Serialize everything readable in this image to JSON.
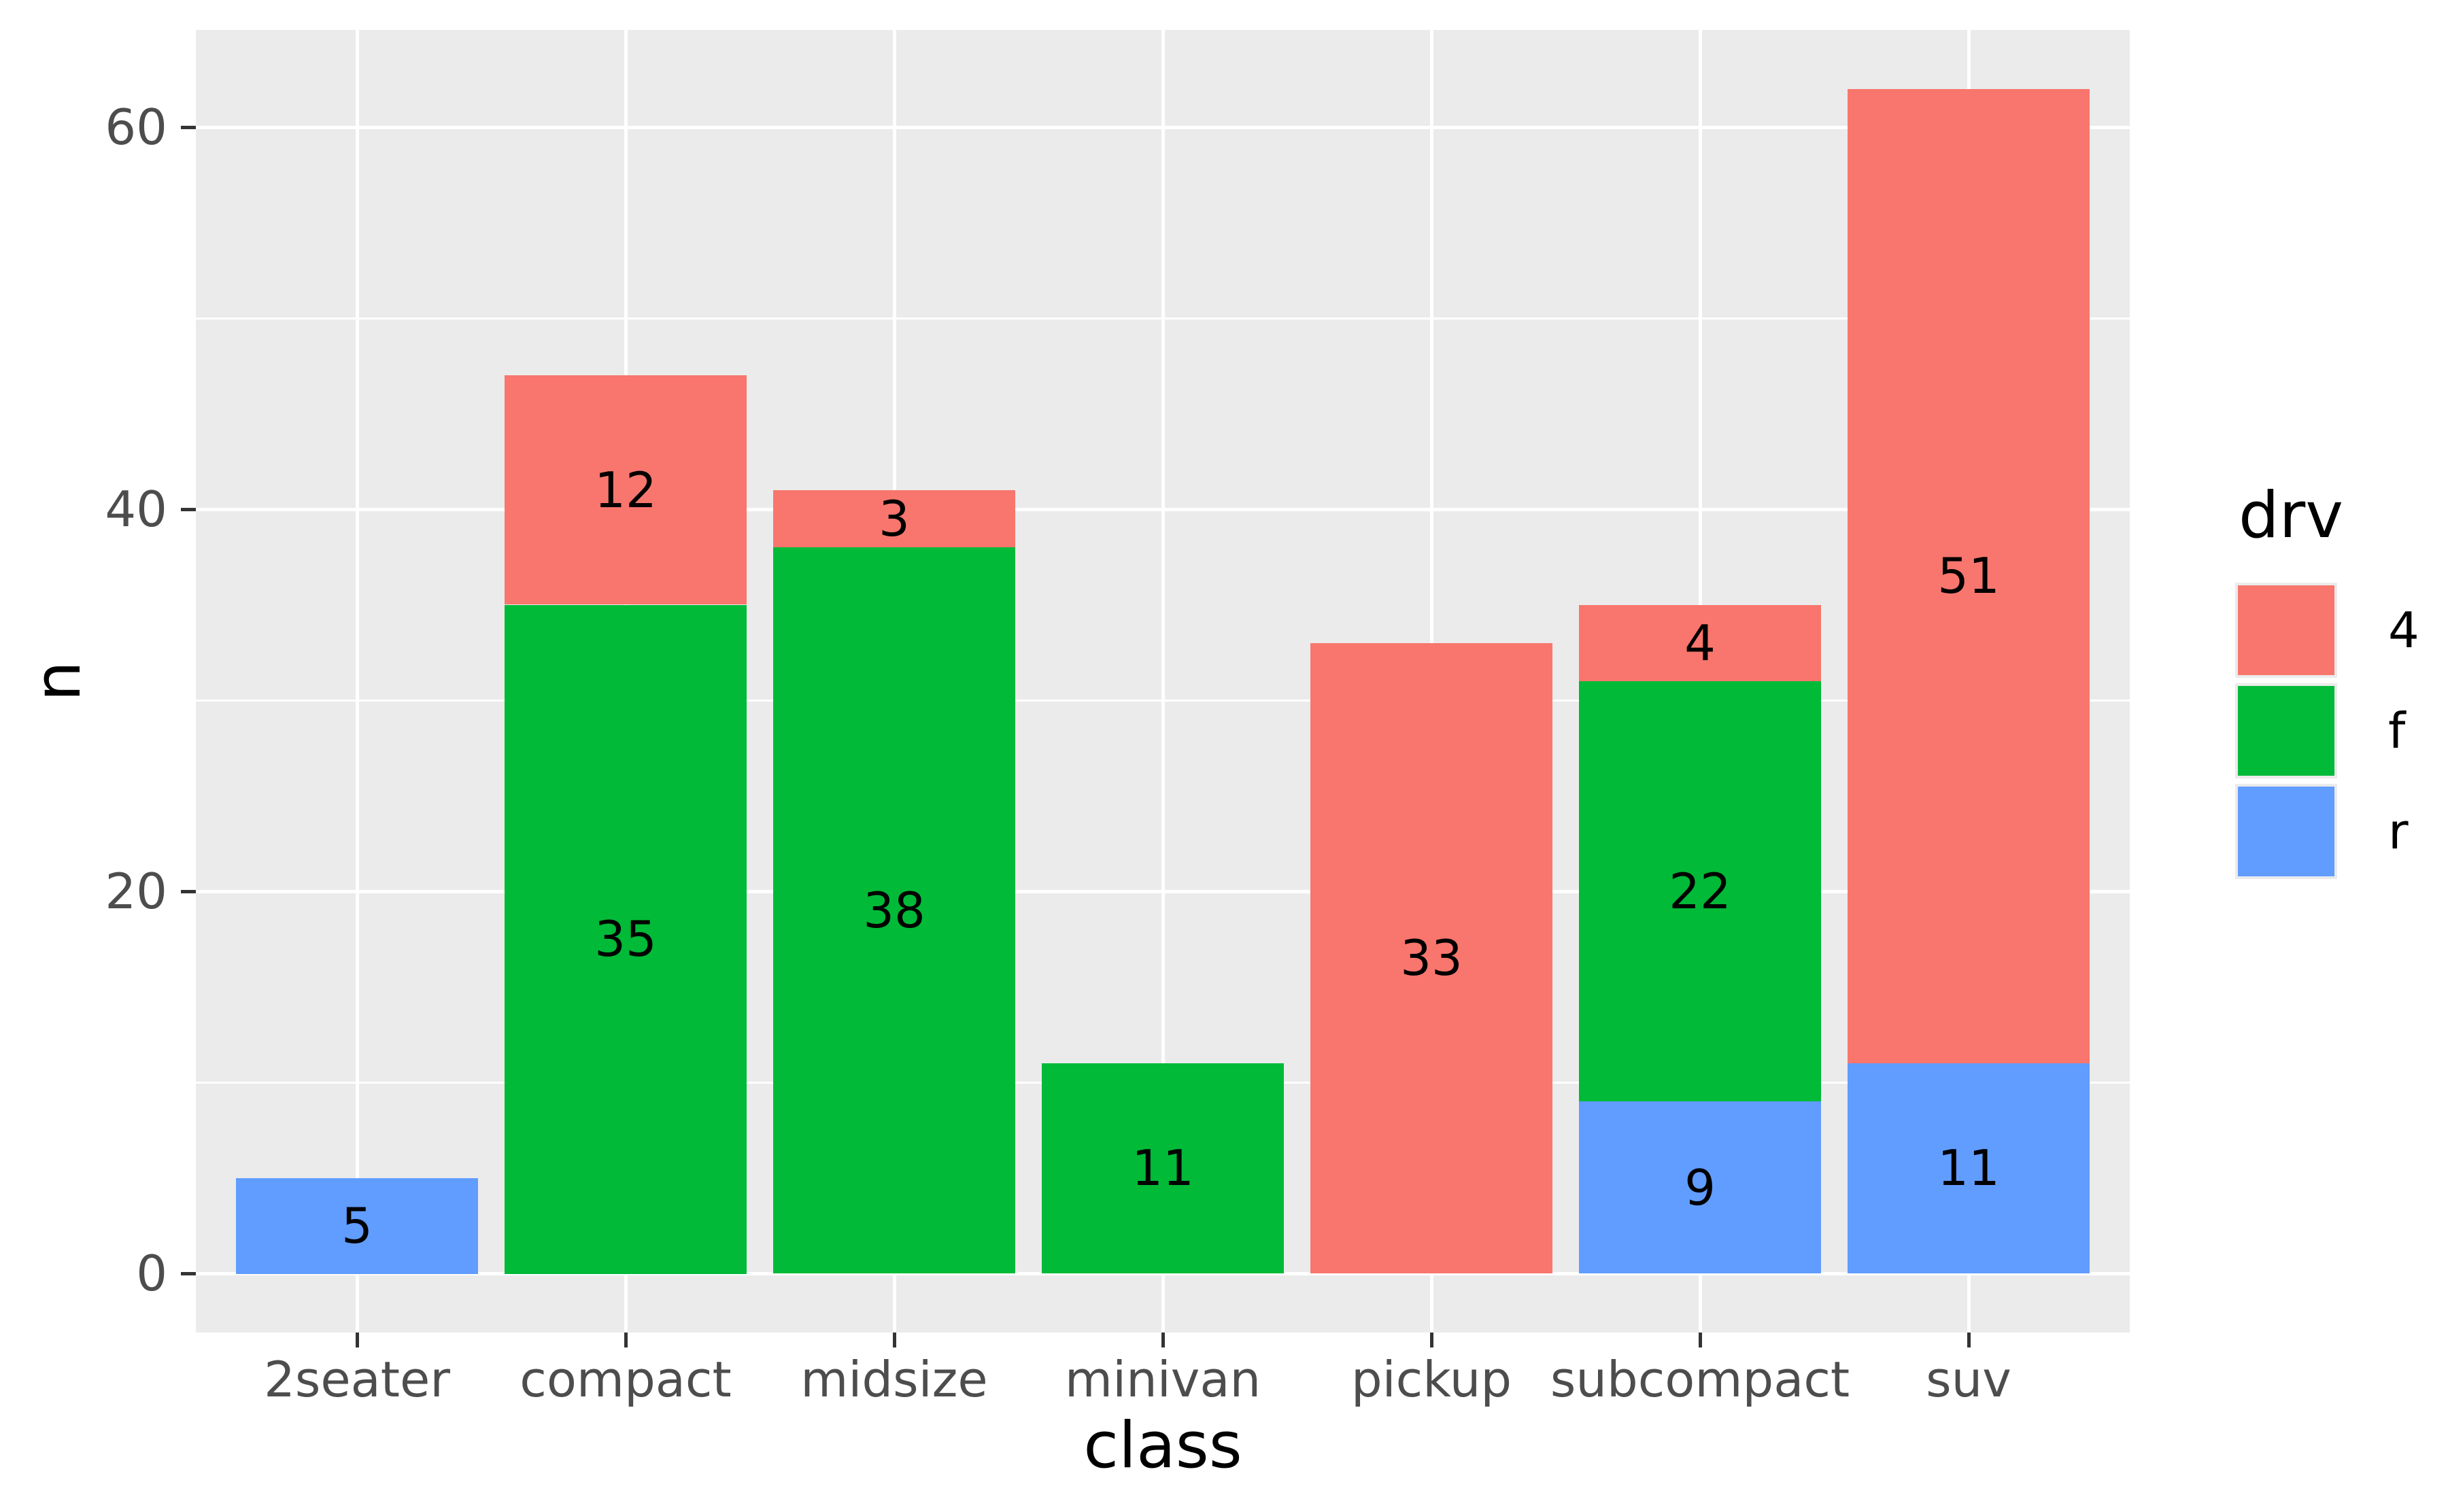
{
  "chart_data": {
    "type": "bar",
    "stacked": true,
    "title": "",
    "xlabel": "class",
    "ylabel": "n",
    "categories": [
      "2seater",
      "compact",
      "midsize",
      "minivan",
      "pickup",
      "subcompact",
      "suv"
    ],
    "stack_order_bottom_to_top": [
      "r",
      "f",
      "4"
    ],
    "series": [
      {
        "name": "4",
        "color": "#F8766D",
        "values": [
          0,
          12,
          3,
          0,
          33,
          4,
          51
        ]
      },
      {
        "name": "f",
        "color": "#00BA38",
        "values": [
          0,
          35,
          38,
          11,
          0,
          22,
          0
        ]
      },
      {
        "name": "r",
        "color": "#619CFF",
        "values": [
          5,
          0,
          0,
          0,
          0,
          9,
          11
        ]
      }
    ],
    "totals": [
      5,
      47,
      41,
      11,
      33,
      35,
      62
    ],
    "segment_labels_shown_inside_bars": true,
    "y_major_ticks": [
      0,
      20,
      40,
      60
    ],
    "y_major_tick_labels": [
      "0",
      "20",
      "40",
      "60"
    ],
    "y_minor_gridlines": [
      10,
      30,
      50
    ],
    "ylim": [
      -3.1,
      65.1
    ],
    "grid": "major white + minor white on gray panel",
    "legend": {
      "title": "drv",
      "position": "right",
      "entries": [
        {
          "label": "4",
          "color": "#F8766D"
        },
        {
          "label": "f",
          "color": "#00BA38"
        },
        {
          "label": "r",
          "color": "#619CFF"
        }
      ]
    }
  },
  "colors": {
    "background": "#FFFFFF",
    "panel_background": "#EBEBEB",
    "gridline": "#FFFFFF",
    "tick_mark": "#333333",
    "axis_tick_text": "#4D4D4D",
    "axis_title_text": "#000000",
    "bar_label_text": "#000000",
    "legend_key_background": "#EBEBEB"
  }
}
